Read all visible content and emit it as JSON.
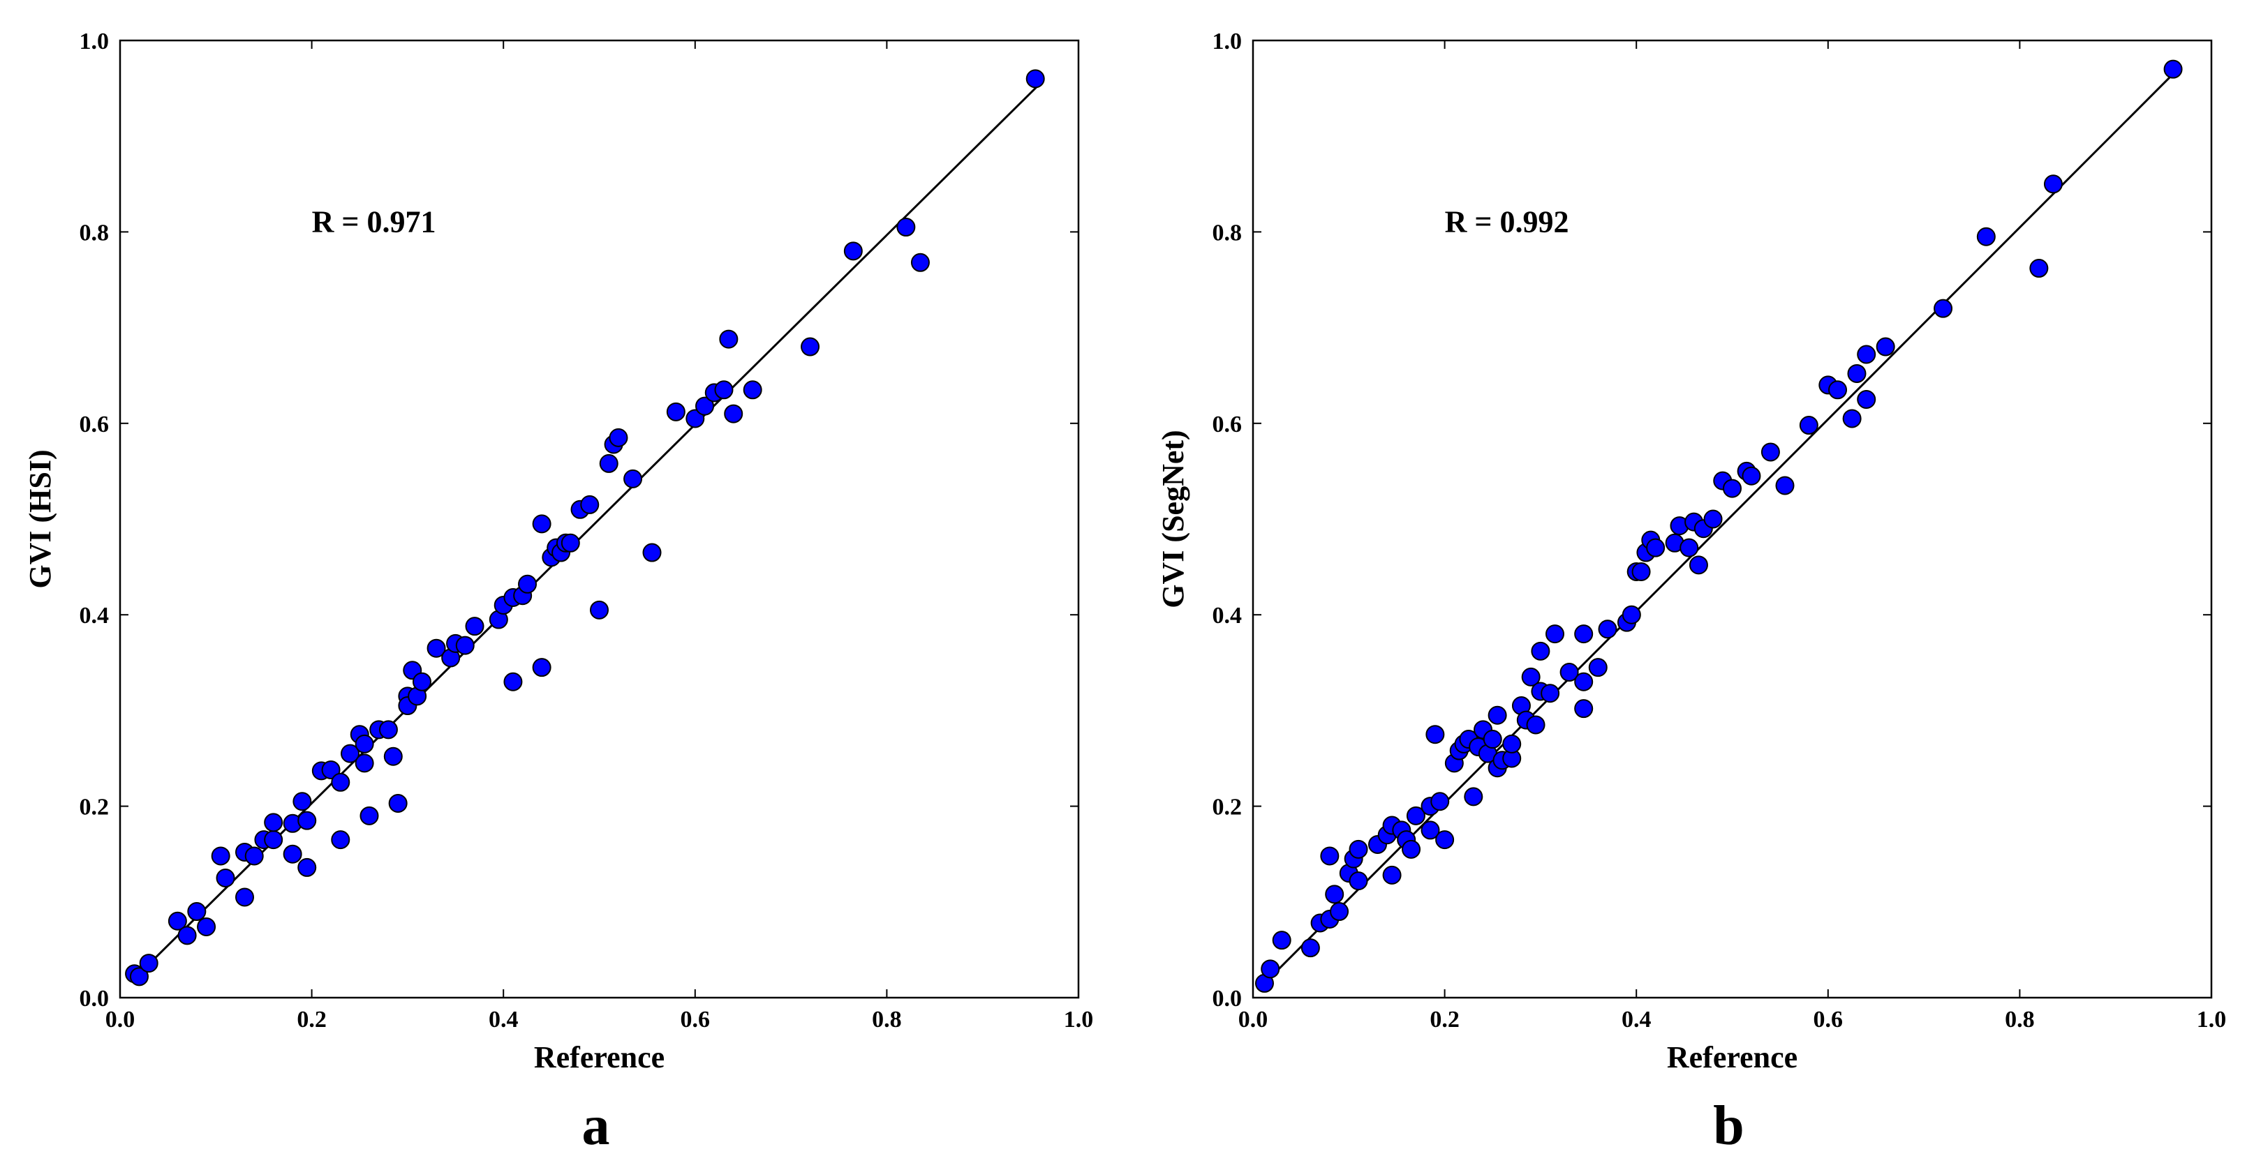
{
  "chart_data": [
    {
      "type": "scatter",
      "panel_label": "a",
      "xlabel": "Reference",
      "ylabel": "GVI (HSI)",
      "annotation": "R = 0.971",
      "xlim": [
        0.0,
        1.0
      ],
      "ylim": [
        0.0,
        1.0
      ],
      "x_ticks": [
        "0.0",
        "0.2",
        "0.4",
        "0.6",
        "0.8",
        "1.0"
      ],
      "y_ticks": [
        "0.0",
        "0.2",
        "0.4",
        "0.6",
        "0.8",
        "1.0"
      ],
      "grid": false,
      "marker_color": "#0000ff",
      "fit_line": {
        "x": [
          0.02,
          0.96
        ],
        "y": [
          0.025,
          0.955
        ]
      },
      "points": [
        [
          0.015,
          0.025
        ],
        [
          0.02,
          0.022
        ],
        [
          0.03,
          0.036
        ],
        [
          0.06,
          0.08
        ],
        [
          0.07,
          0.065
        ],
        [
          0.08,
          0.09
        ],
        [
          0.09,
          0.074
        ],
        [
          0.105,
          0.148
        ],
        [
          0.11,
          0.125
        ],
        [
          0.13,
          0.105
        ],
        [
          0.13,
          0.152
        ],
        [
          0.14,
          0.148
        ],
        [
          0.15,
          0.165
        ],
        [
          0.16,
          0.165
        ],
        [
          0.16,
          0.183
        ],
        [
          0.18,
          0.182
        ],
        [
          0.19,
          0.205
        ],
        [
          0.195,
          0.185
        ],
        [
          0.18,
          0.15
        ],
        [
          0.195,
          0.136
        ],
        [
          0.21,
          0.237
        ],
        [
          0.22,
          0.238
        ],
        [
          0.23,
          0.225
        ],
        [
          0.23,
          0.165
        ],
        [
          0.24,
          0.255
        ],
        [
          0.25,
          0.275
        ],
        [
          0.255,
          0.245
        ],
        [
          0.255,
          0.265
        ],
        [
          0.26,
          0.19
        ],
        [
          0.27,
          0.28
        ],
        [
          0.28,
          0.28
        ],
        [
          0.285,
          0.252
        ],
        [
          0.29,
          0.203
        ],
        [
          0.3,
          0.315
        ],
        [
          0.3,
          0.305
        ],
        [
          0.305,
          0.342
        ],
        [
          0.31,
          0.315
        ],
        [
          0.315,
          0.33
        ],
        [
          0.33,
          0.365
        ],
        [
          0.345,
          0.355
        ],
        [
          0.35,
          0.37
        ],
        [
          0.36,
          0.368
        ],
        [
          0.37,
          0.388
        ],
        [
          0.395,
          0.395
        ],
        [
          0.4,
          0.41
        ],
        [
          0.41,
          0.418
        ],
        [
          0.41,
          0.33
        ],
        [
          0.42,
          0.42
        ],
        [
          0.425,
          0.432
        ],
        [
          0.44,
          0.345
        ],
        [
          0.44,
          0.495
        ],
        [
          0.45,
          0.46
        ],
        [
          0.455,
          0.47
        ],
        [
          0.46,
          0.465
        ],
        [
          0.465,
          0.475
        ],
        [
          0.47,
          0.475
        ],
        [
          0.48,
          0.51
        ],
        [
          0.49,
          0.515
        ],
        [
          0.5,
          0.405
        ],
        [
          0.51,
          0.558
        ],
        [
          0.515,
          0.578
        ],
        [
          0.52,
          0.585
        ],
        [
          0.535,
          0.542
        ],
        [
          0.555,
          0.465
        ],
        [
          0.58,
          0.612
        ],
        [
          0.6,
          0.605
        ],
        [
          0.61,
          0.618
        ],
        [
          0.62,
          0.632
        ],
        [
          0.63,
          0.635
        ],
        [
          0.635,
          0.688
        ],
        [
          0.64,
          0.61
        ],
        [
          0.66,
          0.635
        ],
        [
          0.72,
          0.68
        ],
        [
          0.765,
          0.78
        ],
        [
          0.82,
          0.805
        ],
        [
          0.835,
          0.768
        ],
        [
          0.955,
          0.96
        ]
      ]
    },
    {
      "type": "scatter",
      "panel_label": "b",
      "xlabel": "Reference",
      "ylabel": "GVI (SegNet)",
      "annotation": "R = 0.992",
      "xlim": [
        0.0,
        1.0
      ],
      "ylim": [
        0.0,
        1.0
      ],
      "x_ticks": [
        "0.0",
        "0.2",
        "0.4",
        "0.6",
        "0.8",
        "1.0"
      ],
      "y_ticks": [
        "0.0",
        "0.2",
        "0.4",
        "0.6",
        "0.8",
        "1.0"
      ],
      "grid": false,
      "marker_color": "#0000ff",
      "fit_line": {
        "x": [
          0.015,
          0.96
        ],
        "y": [
          0.018,
          0.965
        ]
      },
      "points": [
        [
          0.012,
          0.015
        ],
        [
          0.018,
          0.03
        ],
        [
          0.03,
          0.06
        ],
        [
          0.06,
          0.052
        ],
        [
          0.07,
          0.078
        ],
        [
          0.08,
          0.082
        ],
        [
          0.085,
          0.108
        ],
        [
          0.08,
          0.148
        ],
        [
          0.09,
          0.09
        ],
        [
          0.1,
          0.13
        ],
        [
          0.105,
          0.145
        ],
        [
          0.11,
          0.122
        ],
        [
          0.11,
          0.155
        ],
        [
          0.13,
          0.16
        ],
        [
          0.14,
          0.17
        ],
        [
          0.145,
          0.128
        ],
        [
          0.145,
          0.18
        ],
        [
          0.155,
          0.175
        ],
        [
          0.16,
          0.165
        ],
        [
          0.165,
          0.155
        ],
        [
          0.17,
          0.19
        ],
        [
          0.185,
          0.175
        ],
        [
          0.185,
          0.2
        ],
        [
          0.19,
          0.275
        ],
        [
          0.195,
          0.205
        ],
        [
          0.2,
          0.165
        ],
        [
          0.21,
          0.245
        ],
        [
          0.215,
          0.258
        ],
        [
          0.22,
          0.265
        ],
        [
          0.225,
          0.27
        ],
        [
          0.23,
          0.21
        ],
        [
          0.235,
          0.262
        ],
        [
          0.24,
          0.28
        ],
        [
          0.245,
          0.255
        ],
        [
          0.25,
          0.27
        ],
        [
          0.255,
          0.24
        ],
        [
          0.255,
          0.295
        ],
        [
          0.26,
          0.248
        ],
        [
          0.27,
          0.25
        ],
        [
          0.27,
          0.265
        ],
        [
          0.28,
          0.305
        ],
        [
          0.285,
          0.29
        ],
        [
          0.29,
          0.335
        ],
        [
          0.295,
          0.285
        ],
        [
          0.3,
          0.32
        ],
        [
          0.3,
          0.362
        ],
        [
          0.31,
          0.318
        ],
        [
          0.315,
          0.38
        ],
        [
          0.33,
          0.34
        ],
        [
          0.345,
          0.302
        ],
        [
          0.345,
          0.33
        ],
        [
          0.345,
          0.38
        ],
        [
          0.36,
          0.345
        ],
        [
          0.37,
          0.385
        ],
        [
          0.39,
          0.392
        ],
        [
          0.395,
          0.4
        ],
        [
          0.4,
          0.445
        ],
        [
          0.405,
          0.445
        ],
        [
          0.41,
          0.465
        ],
        [
          0.415,
          0.478
        ],
        [
          0.42,
          0.47
        ],
        [
          0.44,
          0.475
        ],
        [
          0.445,
          0.493
        ],
        [
          0.455,
          0.47
        ],
        [
          0.46,
          0.497
        ],
        [
          0.465,
          0.452
        ],
        [
          0.47,
          0.49
        ],
        [
          0.48,
          0.5
        ],
        [
          0.49,
          0.54
        ],
        [
          0.5,
          0.532
        ],
        [
          0.515,
          0.55
        ],
        [
          0.52,
          0.545
        ],
        [
          0.54,
          0.57
        ],
        [
          0.555,
          0.535
        ],
        [
          0.58,
          0.598
        ],
        [
          0.6,
          0.64
        ],
        [
          0.61,
          0.635
        ],
        [
          0.625,
          0.605
        ],
        [
          0.63,
          0.652
        ],
        [
          0.64,
          0.672
        ],
        [
          0.64,
          0.625
        ],
        [
          0.66,
          0.68
        ],
        [
          0.72,
          0.72
        ],
        [
          0.765,
          0.795
        ],
        [
          0.82,
          0.762
        ],
        [
          0.835,
          0.85
        ],
        [
          0.96,
          0.97
        ]
      ]
    }
  ]
}
